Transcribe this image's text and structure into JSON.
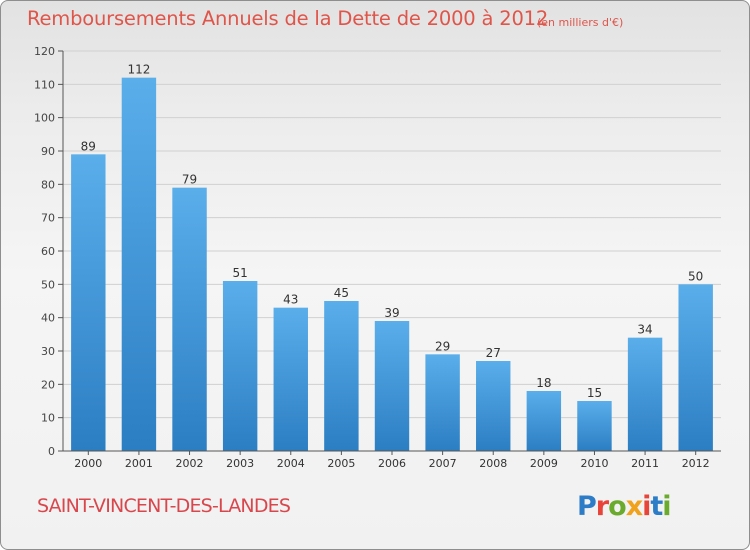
{
  "title": "Remboursements Annuels de la Dette de 2000 à 2012",
  "subtitle": "(en milliers d'€)",
  "commune": "SAINT-VINCENT-DES-LANDES",
  "logo": {
    "text": "Proxiti",
    "letter_colors": [
      "#2c7cc8",
      "#e9443a",
      "#6aaa2c",
      "#f0a21c",
      "#e9443a",
      "#2c7cc8",
      "#6aaa2c"
    ]
  },
  "colors": {
    "title": "#e0554a",
    "bar_top": "#5aaeea",
    "bar_bottom": "#2c7ec3",
    "grid": "#d0d0d0"
  },
  "chart_data": {
    "type": "bar",
    "title": "Remboursements Annuels de la Dette de 2000 à 2012",
    "subtitle": "(en milliers d'€)",
    "categories": [
      "2000",
      "2001",
      "2002",
      "2003",
      "2004",
      "2005",
      "2006",
      "2007",
      "2008",
      "2009",
      "2010",
      "2011",
      "2012"
    ],
    "values": [
      89,
      112,
      79,
      51,
      43,
      45,
      39,
      29,
      27,
      18,
      15,
      34,
      50
    ],
    "data_labels": [
      "89",
      "112",
      "79",
      "51",
      "43",
      "45",
      "39",
      "29",
      "27",
      "18",
      "15",
      "34",
      "50"
    ],
    "ylim": [
      0,
      120
    ],
    "yticks": [
      0,
      10,
      20,
      30,
      40,
      50,
      60,
      70,
      80,
      90,
      100,
      110,
      120
    ],
    "grid": true,
    "xlabel": "",
    "ylabel": ""
  }
}
